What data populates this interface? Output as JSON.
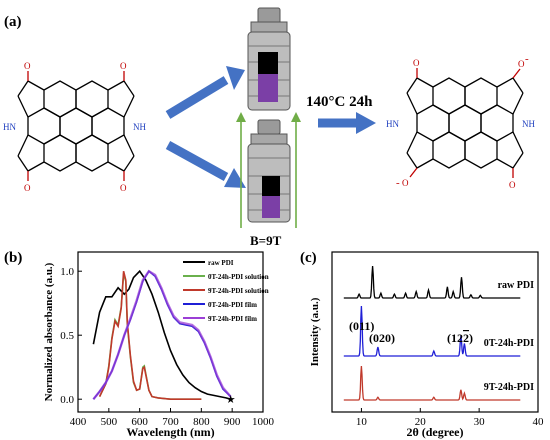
{
  "panels": {
    "a": "(a)",
    "b": "(b)",
    "c": "(c)"
  },
  "scheme": {
    "condition": "140°C 24h",
    "field": "B=9T",
    "atoms": {
      "nitrogen_h": "HN",
      "nitrogen_h_r": "NH",
      "oxygen": "O",
      "charge": "-"
    }
  },
  "colors": {
    "arrow_blue": "#4472c4",
    "field_green": "#70ad47",
    "reactor_purple": "#7b3fa6",
    "condition_text": "#000000"
  },
  "chart_data": [
    {
      "type": "line",
      "xlabel": "Wavelength (nm)",
      "ylabel": "Normalized absorbance (a.u.)",
      "xlim": [
        400,
        1000
      ],
      "ylim": [
        -0.1,
        1.15
      ],
      "xticks": [
        400,
        500,
        600,
        700,
        800,
        900,
        1000
      ],
      "yticks": [
        0.0,
        0.5,
        1.0
      ],
      "legend_position": "top-right",
      "series": [
        {
          "name": "raw PDI",
          "color": "#000000",
          "x": [
            450,
            470,
            490,
            510,
            530,
            550,
            565,
            580,
            600,
            620,
            640,
            660,
            680,
            700,
            720,
            740,
            760,
            780,
            800,
            820,
            840,
            860,
            880,
            895
          ],
          "y": [
            0.43,
            0.68,
            0.8,
            0.8,
            0.87,
            0.82,
            0.86,
            0.95,
            1.0,
            0.93,
            0.82,
            0.68,
            0.52,
            0.38,
            0.27,
            0.19,
            0.13,
            0.09,
            0.06,
            0.04,
            0.03,
            0.02,
            0.01,
            0.0
          ]
        },
        {
          "name": "0T-24h-PDI solution",
          "color": "#6ab04c",
          "x": [
            470,
            490,
            500,
            510,
            520,
            530,
            540,
            548,
            555,
            560,
            570,
            580,
            590,
            600,
            610,
            615,
            620,
            630,
            640,
            660,
            700,
            760,
            800
          ],
          "y": [
            0.02,
            0.12,
            0.26,
            0.48,
            0.62,
            0.58,
            0.72,
            0.98,
            0.92,
            0.58,
            0.33,
            0.13,
            0.07,
            0.08,
            0.25,
            0.26,
            0.2,
            0.07,
            0.02,
            0.01,
            0.0,
            0.0,
            0.0
          ]
        },
        {
          "name": "9T-24h-PDI solution",
          "color": "#c0392b",
          "x": [
            470,
            490,
            500,
            510,
            520,
            530,
            540,
            548,
            555,
            560,
            570,
            580,
            590,
            600,
            610,
            615,
            620,
            630,
            640,
            660,
            700,
            760,
            800
          ],
          "y": [
            0.02,
            0.12,
            0.25,
            0.47,
            0.61,
            0.57,
            0.71,
            1.0,
            0.93,
            0.6,
            0.34,
            0.14,
            0.07,
            0.08,
            0.24,
            0.25,
            0.19,
            0.07,
            0.02,
            0.01,
            0.0,
            0.0,
            0.0
          ]
        },
        {
          "name": "0T-24h-PDI film",
          "color": "#1f1fd6",
          "x": [
            450,
            470,
            490,
            510,
            530,
            550,
            570,
            590,
            610,
            630,
            650,
            670,
            690,
            710,
            730,
            750,
            770,
            790,
            810,
            830,
            850,
            870,
            895
          ],
          "y": [
            0.0,
            0.06,
            0.13,
            0.22,
            0.35,
            0.5,
            0.62,
            0.76,
            0.92,
            1.0,
            0.96,
            0.86,
            0.74,
            0.64,
            0.59,
            0.58,
            0.57,
            0.53,
            0.44,
            0.32,
            0.18,
            0.08,
            0.02
          ]
        },
        {
          "name": "9T-24h-PDI film",
          "color": "#9b3fd6",
          "x": [
            450,
            470,
            490,
            510,
            530,
            550,
            570,
            590,
            610,
            630,
            650,
            670,
            690,
            710,
            730,
            750,
            770,
            790,
            810,
            830,
            850,
            870,
            895
          ],
          "y": [
            0.0,
            0.06,
            0.13,
            0.22,
            0.35,
            0.5,
            0.63,
            0.77,
            0.93,
            1.0,
            0.97,
            0.87,
            0.75,
            0.65,
            0.6,
            0.59,
            0.58,
            0.54,
            0.45,
            0.33,
            0.19,
            0.09,
            0.02
          ]
        }
      ]
    },
    {
      "type": "line",
      "xlabel": "2θ (degree)",
      "ylabel": "Intensity (a.u.)",
      "xlim": [
        5,
        40
      ],
      "xticks": [
        10,
        20,
        30,
        40
      ],
      "series": [
        {
          "name": "raw PDI",
          "color": "#000000",
          "peaks": [
            [
              9.6,
              0.12
            ],
            [
              11.9,
              1.0
            ],
            [
              13.3,
              0.15
            ],
            [
              15.6,
              0.12
            ],
            [
              17.5,
              0.15
            ],
            [
              19.3,
              0.2
            ],
            [
              21.4,
              0.25
            ],
            [
              24.6,
              0.35
            ],
            [
              25.6,
              0.2
            ],
            [
              27.0,
              0.65
            ],
            [
              28.6,
              0.1
            ],
            [
              30.2,
              0.08
            ]
          ]
        },
        {
          "name": "0T-24h-PDI",
          "color": "#1f1fd6",
          "peaks": [
            [
              10.0,
              1.0
            ],
            [
              12.8,
              0.18
            ],
            [
              22.3,
              0.1
            ],
            [
              26.9,
              0.4
            ],
            [
              27.5,
              0.25
            ]
          ]
        },
        {
          "name": "9T-24h-PDI",
          "color": "#c0392b",
          "peaks": [
            [
              10.0,
              1.0
            ],
            [
              12.8,
              0.08
            ],
            [
              22.3,
              0.08
            ],
            [
              26.9,
              0.3
            ],
            [
              27.5,
              0.2
            ]
          ]
        }
      ],
      "annotations": [
        "(011)",
        "(020)",
        "(12",
        "2",
        ")"
      ]
    }
  ]
}
